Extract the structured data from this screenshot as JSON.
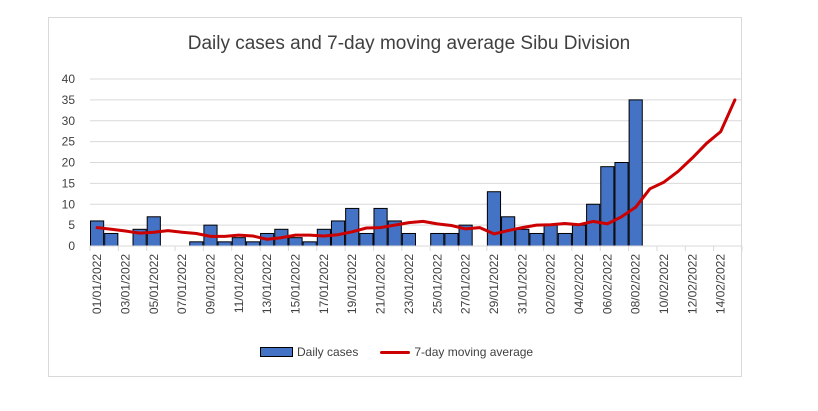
{
  "chart_data": {
    "type": "bar",
    "title": "Daily cases and 7-day moving average Sibu Division",
    "xlabel": "",
    "ylabel": "",
    "ylim": [
      0,
      40
    ],
    "yticks": [
      0,
      5,
      10,
      15,
      20,
      25,
      30,
      35,
      40
    ],
    "grid": true,
    "legend_position": "bottom",
    "categories": [
      "01/01/2022",
      "02/01/2022",
      "03/01/2022",
      "04/01/2022",
      "05/01/2022",
      "06/01/2022",
      "07/01/2022",
      "08/01/2022",
      "09/01/2022",
      "10/01/2022",
      "11/01/2022",
      "12/01/2022",
      "13/01/2022",
      "14/01/2022",
      "15/01/2022",
      "16/01/2022",
      "17/01/2022",
      "18/01/2022",
      "19/01/2022",
      "20/01/2022",
      "21/01/2022",
      "22/01/2022",
      "23/01/2022",
      "24/01/2022",
      "25/01/2022",
      "26/01/2022",
      "27/01/2022",
      "28/01/2022",
      "29/01/2022",
      "30/01/2022",
      "31/01/2022",
      "01/02/2022",
      "02/02/2022",
      "03/02/2022",
      "04/02/2022",
      "05/02/2022",
      "06/02/2022",
      "07/02/2022",
      "08/02/2022",
      "09/02/2022",
      "10/02/2022",
      "11/02/2022",
      "12/02/2022",
      "13/02/2022",
      "14/02/2022",
      "15/02/2022"
    ],
    "tick_labels": [
      "01/01/2022",
      "03/01/2022",
      "05/01/2022",
      "07/01/2022",
      "09/01/2022",
      "11/01/2022",
      "13/01/2022",
      "15/01/2022",
      "17/01/2022",
      "19/01/2022",
      "21/01/2022",
      "23/01/2022",
      "25/01/2022",
      "27/01/2022",
      "29/01/2022",
      "31/01/2022",
      "02/02/2022",
      "04/02/2022",
      "06/02/2022",
      "08/02/2022",
      "10/02/2022",
      "12/02/2022",
      "14/02/2022"
    ],
    "series": [
      {
        "name": "Daily cases",
        "type": "bar",
        "color": "#4472c4",
        "values": [
          6,
          3,
          0,
          4,
          7,
          0,
          0,
          1,
          5,
          1,
          2,
          1,
          3,
          4,
          2,
          1,
          4,
          6,
          9,
          3,
          9,
          6,
          3,
          0,
          3,
          3,
          5,
          0,
          13,
          7,
          4,
          3,
          5,
          3,
          5,
          10,
          19,
          20,
          35,
          null,
          null,
          null,
          null,
          null,
          null,
          null
        ]
      },
      {
        "name": "7-day moving average",
        "type": "line",
        "color": "#cc0000",
        "values": [
          4.4,
          4.0,
          3.6,
          3.1,
          3.3,
          3.7,
          3.3,
          3.0,
          2.3,
          2.3,
          2.6,
          2.4,
          1.6,
          2.0,
          2.6,
          2.6,
          2.4,
          2.7,
          3.4,
          4.3,
          4.4,
          5.0,
          5.6,
          5.9,
          5.3,
          4.9,
          4.1,
          4.4,
          2.9,
          3.7,
          4.4,
          5.0,
          5.1,
          5.4,
          5.1,
          5.9,
          5.3,
          7.0,
          9.3,
          13.7,
          15.3,
          17.9,
          21.1,
          24.6,
          27.4,
          35
        ]
      }
    ]
  }
}
